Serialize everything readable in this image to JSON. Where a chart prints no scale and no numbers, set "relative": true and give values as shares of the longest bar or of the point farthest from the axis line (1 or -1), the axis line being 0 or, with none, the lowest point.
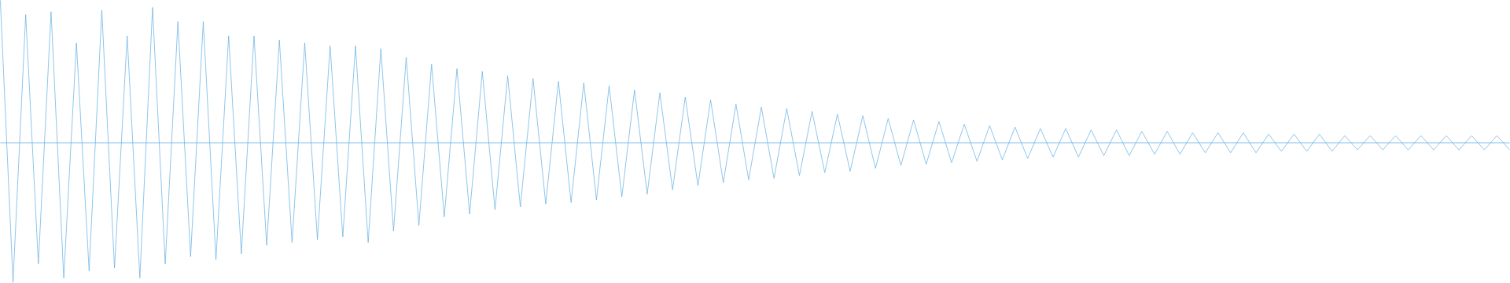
{
  "chart_data": {
    "type": "line",
    "relative": true,
    "color": "#5eade3",
    "ref_lines": [
      {
        "axis": "y",
        "value": 0,
        "color": "#5eade3"
      }
    ],
    "categories": [
      null,
      null,
      null,
      null,
      null,
      null,
      null,
      null,
      null,
      null,
      null,
      null,
      null,
      null,
      null,
      null,
      null,
      null,
      null,
      null,
      null,
      null,
      null,
      null,
      null,
      null,
      null,
      null,
      null,
      null,
      null,
      null,
      null,
      null,
      null,
      null,
      null,
      null,
      null,
      null,
      null,
      null,
      null,
      null,
      null,
      null,
      null,
      null,
      null,
      null,
      null,
      null,
      null,
      null,
      null,
      null,
      null,
      null,
      null,
      null,
      null,
      null,
      null,
      null,
      null,
      null,
      null,
      null,
      null,
      null,
      null,
      null,
      null,
      null,
      null,
      null,
      null,
      null,
      null,
      null,
      null,
      null,
      null,
      null,
      null,
      null,
      null,
      null,
      null,
      null,
      null,
      null,
      null,
      null,
      null,
      null,
      null,
      null,
      null,
      null,
      null,
      null,
      null,
      null,
      null,
      null,
      null,
      null,
      null,
      null,
      null,
      null,
      null,
      null,
      null,
      null,
      null,
      null,
      null,
      null
    ],
    "values": [
      1.0,
      -0.98,
      0.9,
      -0.85,
      0.92,
      -0.95,
      0.7,
      -0.9,
      0.93,
      -0.88,
      0.75,
      -0.95,
      0.95,
      -0.85,
      0.85,
      -0.8,
      0.85,
      -0.82,
      0.75,
      -0.78,
      0.75,
      -0.72,
      0.72,
      -0.7,
      0.7,
      -0.68,
      0.68,
      -0.66,
      0.68,
      -0.7,
      0.66,
      -0.62,
      0.6,
      -0.58,
      0.55,
      -0.52,
      0.52,
      -0.5,
      0.5,
      -0.47,
      0.47,
      -0.45,
      0.45,
      -0.43,
      0.43,
      -0.42,
      0.42,
      -0.4,
      0.4,
      -0.38,
      0.37,
      -0.36,
      0.35,
      -0.33,
      0.32,
      -0.3,
      0.3,
      -0.28,
      0.27,
      -0.26,
      0.25,
      -0.25,
      0.24,
      -0.23,
      0.22,
      -0.21,
      0.2,
      -0.2,
      0.19,
      -0.18,
      0.17,
      -0.16,
      0.16,
      -0.15,
      0.15,
      -0.14,
      0.13,
      -0.13,
      0.12,
      -0.12,
      0.11,
      -0.11,
      0.1,
      -0.1,
      0.1,
      -0.1,
      0.09,
      -0.09,
      0.09,
      -0.09,
      0.08,
      -0.08,
      0.08,
      -0.08,
      0.07,
      -0.07,
      0.07,
      -0.07,
      0.07,
      -0.07,
      0.06,
      -0.06,
      0.06,
      -0.06,
      0.06,
      -0.06,
      0.05,
      -0.05,
      0.05,
      -0.05,
      0.05,
      -0.05,
      0.05,
      -0.05,
      0.05,
      -0.05,
      0.05,
      -0.05,
      0.05,
      -0.05
    ]
  }
}
